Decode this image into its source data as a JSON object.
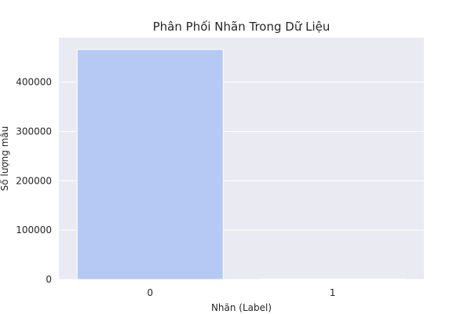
{
  "chart_data": {
    "type": "bar",
    "title": "Phân Phối Nhãn Trong Dữ Liệu",
    "xlabel": "Nhãn (Label)",
    "ylabel": "Số lượng mẫu",
    "categories": [
      "0",
      "1"
    ],
    "values": [
      466000,
      1000
    ],
    "ylim": [
      0,
      490000
    ],
    "yticks": [
      0,
      100000,
      200000,
      300000,
      400000
    ],
    "ytick_labels": [
      "0",
      "100000",
      "200000",
      "300000",
      "400000"
    ],
    "grid": true,
    "bar_colors": [
      "#b5c9f4",
      "#d0d3e8"
    ],
    "plot_background": "#eaeaf2",
    "grid_color": "#ffffff"
  }
}
